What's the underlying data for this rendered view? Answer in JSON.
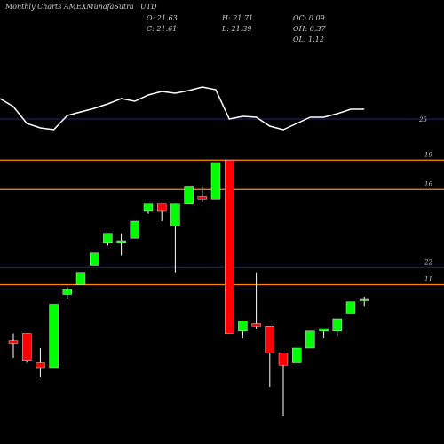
{
  "header": {
    "left_text": "Monthly Charts AMEXMunafaSutra",
    "ticker": "UTD",
    "o": "O: 21.63",
    "h": "H: 21.71",
    "oc": "OC: 0.09",
    "c": "C: 21.61",
    "l": "L: 21.39",
    "oh": "OH: 0.37",
    "ol": "OL: 1.12"
  },
  "colors": {
    "background": "#000000",
    "up": "#00ff00",
    "down": "#ff0000",
    "wick": "#ffffff",
    "orange_line": "#ff8c00",
    "blue_line": "#1e2a66",
    "indicator": "#ffffff",
    "label": "#cccccc"
  },
  "chart_data": {
    "type": "candlestick",
    "price_range": [
      15.2,
      27.2
    ],
    "candles": [
      {
        "o": 18.7,
        "h": 19.0,
        "l": 18.0,
        "c": 18.6
      },
      {
        "o": 19.0,
        "h": 19.0,
        "l": 17.8,
        "c": 17.9
      },
      {
        "o": 17.8,
        "h": 18.4,
        "l": 17.2,
        "c": 17.6
      },
      {
        "o": 17.6,
        "h": 20.2,
        "l": 17.6,
        "c": 20.2
      },
      {
        "o": 20.6,
        "h": 20.9,
        "l": 20.4,
        "c": 20.8
      },
      {
        "o": 21.0,
        "h": 21.5,
        "l": 21.0,
        "c": 21.5
      },
      {
        "o": 21.8,
        "h": 22.3,
        "l": 21.8,
        "c": 22.3
      },
      {
        "o": 22.7,
        "h": 23.1,
        "l": 22.6,
        "c": 23.1
      },
      {
        "o": 22.7,
        "h": 23.1,
        "l": 22.2,
        "c": 22.8
      },
      {
        "o": 22.9,
        "h": 23.6,
        "l": 22.9,
        "c": 23.6
      },
      {
        "o": 24.0,
        "h": 24.3,
        "l": 23.9,
        "c": 24.3
      },
      {
        "o": 24.3,
        "h": 24.3,
        "l": 23.6,
        "c": 24.0
      },
      {
        "o": 23.4,
        "h": 24.3,
        "l": 21.5,
        "c": 24.3
      },
      {
        "o": 24.3,
        "h": 25.0,
        "l": 24.3,
        "c": 25.0
      },
      {
        "o": 24.6,
        "h": 25.0,
        "l": 24.4,
        "c": 24.5
      },
      {
        "o": 24.5,
        "h": 26.0,
        "l": 24.5,
        "c": 26.0
      },
      {
        "o": 26.1,
        "h": 26.1,
        "l": 19.0,
        "c": 19.0
      },
      {
        "o": 19.1,
        "h": 19.5,
        "l": 18.8,
        "c": 19.5
      },
      {
        "o": 19.4,
        "h": 21.5,
        "l": 19.2,
        "c": 19.3
      },
      {
        "o": 19.3,
        "h": 19.3,
        "l": 16.8,
        "c": 18.2
      },
      {
        "o": 18.2,
        "h": 18.2,
        "l": 15.6,
        "c": 17.7
      },
      {
        "o": 17.8,
        "h": 18.4,
        "l": 17.8,
        "c": 18.4
      },
      {
        "o": 18.4,
        "h": 19.1,
        "l": 18.4,
        "c": 19.1
      },
      {
        "o": 19.1,
        "h": 19.2,
        "l": 18.8,
        "c": 19.2
      },
      {
        "o": 19.1,
        "h": 19.6,
        "l": 18.9,
        "c": 19.6
      },
      {
        "o": 19.8,
        "h": 20.3,
        "l": 19.8,
        "c": 20.3
      },
      {
        "o": 20.4,
        "h": 20.5,
        "l": 20.1,
        "c": 20.4
      }
    ],
    "horizontal_lines": [
      {
        "price": 26.1,
        "label": "19",
        "color": "orange"
      },
      {
        "price": 24.9,
        "label": "16",
        "color": "orange"
      },
      {
        "price": 21.0,
        "label": "11",
        "color": "orange"
      },
      {
        "price": 21.7,
        "label": "22",
        "color": "blue"
      }
    ],
    "indicator": {
      "values": [
        70,
        51,
        46,
        44,
        60,
        64,
        68,
        73,
        79,
        76,
        83,
        87,
        85,
        88,
        92,
        89,
        56,
        59,
        58,
        48,
        44,
        51,
        58,
        58,
        62,
        67,
        67
      ],
      "range": [
        0,
        130
      ],
      "ref_line": {
        "value": 56,
        "label": "25"
      }
    }
  }
}
